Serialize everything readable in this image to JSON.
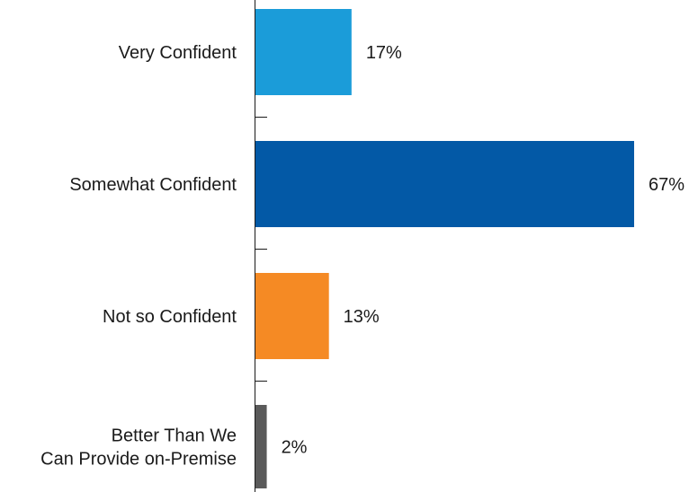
{
  "chart_data": {
    "type": "bar",
    "orientation": "horizontal",
    "categories": [
      [
        "Very Confident"
      ],
      [
        "Somewhat Confident"
      ],
      [
        "Not so Confident"
      ],
      [
        "Better Than We",
        "Can Provide on-Premise"
      ]
    ],
    "values": [
      17,
      67,
      13,
      2
    ],
    "value_labels": [
      "17%",
      "67%",
      "13%",
      "2%"
    ],
    "bar_colors": [
      "#1b9cd9",
      "#0359a6",
      "#f58a24",
      "#5a5a5a"
    ],
    "axis_color": "#1a1a1a",
    "xlim": [
      0,
      67
    ],
    "grid": false,
    "legend": "none",
    "title": "",
    "xlabel": "",
    "ylabel": ""
  }
}
